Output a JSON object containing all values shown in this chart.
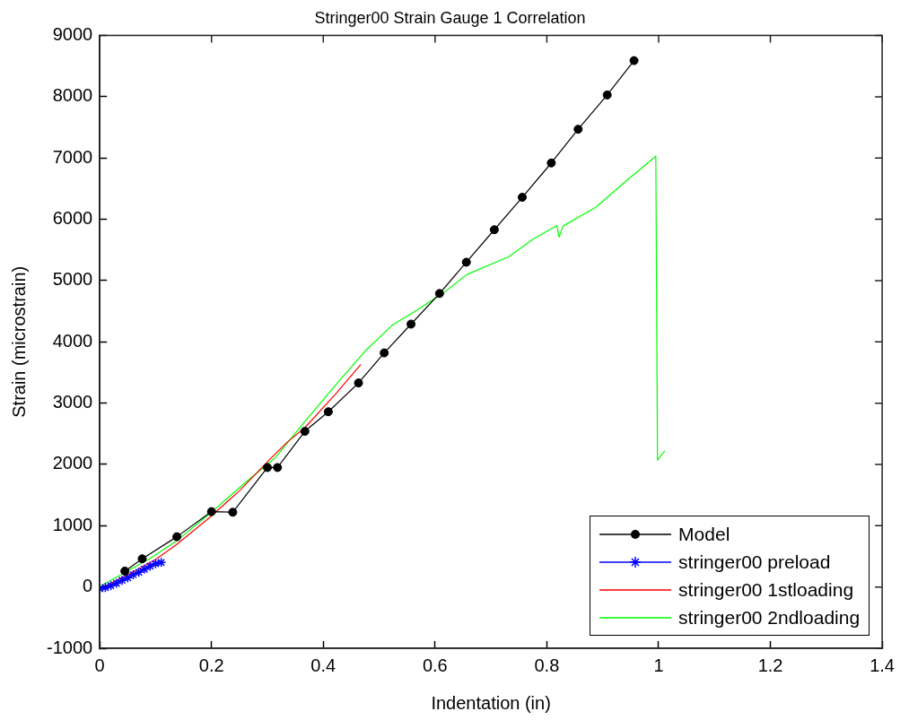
{
  "chart_data": {
    "type": "line",
    "title": "Stringer00 Strain Gauge 1 Correlation",
    "xlabel": "Indentation (in)",
    "ylabel": "Strain (microstrain)",
    "xlim": [
      0,
      1.4
    ],
    "xticks": [
      0,
      0.2,
      0.4,
      0.6,
      0.8,
      1,
      1.2,
      1.4
    ],
    "ylim": [
      -1000,
      9000
    ],
    "yticks": [
      -1000,
      0,
      1000,
      2000,
      3000,
      4000,
      5000,
      6000,
      7000,
      8000,
      9000
    ],
    "grid": false,
    "legend": "bottom right",
    "series": [
      {
        "name": "Model",
        "color": "#000000",
        "marker": "circle",
        "x": [
          0.045,
          0.076,
          0.138,
          0.2,
          0.238,
          0.3,
          0.318,
          0.367,
          0.409,
          0.463,
          0.509,
          0.557,
          0.608,
          0.656,
          0.706,
          0.756,
          0.808,
          0.856,
          0.908,
          0.956
        ],
        "values": [
          260,
          460,
          820,
          1230,
          1220,
          1950,
          1950,
          2540,
          2860,
          3330,
          3820,
          4290,
          4790,
          5300,
          5830,
          6360,
          6920,
          7470,
          8030,
          8590
        ]
      },
      {
        "name": "stringer00 preload",
        "color": "#0000ff",
        "marker": "cross",
        "x": [
          0,
          0.01,
          0.02,
          0.03,
          0.04,
          0.05,
          0.06,
          0.07,
          0.08,
          0.09,
          0.1,
          0.11
        ],
        "values": [
          -30,
          -10,
          20,
          60,
          110,
          150,
          200,
          240,
          290,
          340,
          380,
          400
        ]
      },
      {
        "name": "stringer00 1stloading",
        "color": "#ff0000",
        "marker": "none",
        "x": [
          0,
          0.05,
          0.1,
          0.137,
          0.196,
          0.25,
          0.303,
          0.335,
          0.367,
          0.421,
          0.467
        ],
        "values": [
          -30,
          200,
          450,
          690,
          1130,
          1570,
          2070,
          2360,
          2600,
          3140,
          3630
        ]
      },
      {
        "name": "stringer00 2ndloading",
        "color": "#00ff00",
        "marker": "none",
        "x": [
          0,
          0.089,
          0.137,
          0.196,
          0.26,
          0.314,
          0.367,
          0.431,
          0.475,
          0.523,
          0.566,
          0.615,
          0.657,
          0.732,
          0.776,
          0.818,
          0.822,
          0.829,
          0.888,
          0.941,
          0.995,
          0.998,
          1.011
        ],
        "values": [
          10,
          460,
          750,
          1190,
          1700,
          2110,
          2700,
          3390,
          3850,
          4270,
          4510,
          4800,
          5100,
          5390,
          5680,
          5900,
          5710,
          5890,
          6200,
          6620,
          7030,
          2070,
          2220
        ]
      }
    ]
  }
}
